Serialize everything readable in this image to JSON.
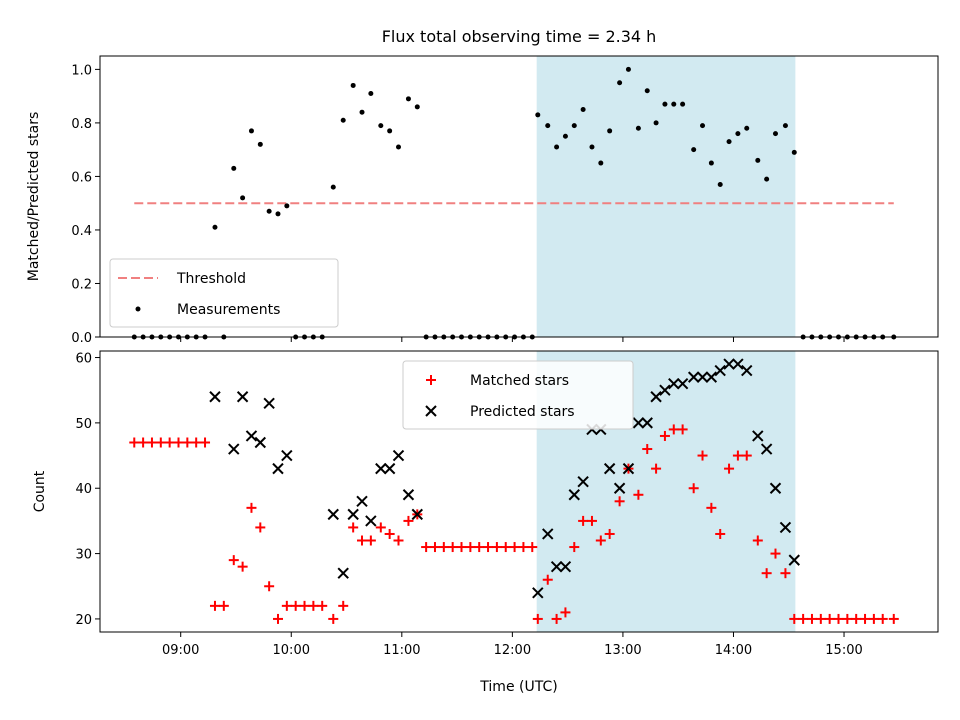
{
  "chart_data": {
    "title": "Flux total observing time = 2.34 h",
    "xlabel": "Time (UTC)",
    "x_tick_labels": [
      "09:00",
      "10:00",
      "11:00",
      "12:00",
      "13:00",
      "14:00",
      "15:00"
    ],
    "x_ticks": [
      9,
      10,
      11,
      12,
      13,
      14,
      15
    ],
    "xlim": [
      8.27,
      15.85
    ],
    "shaded_span": [
      12.22,
      14.56
    ],
    "shade_color": "#add8e6",
    "panels": [
      {
        "type": "scatter",
        "ylabel": "Matched/Predicted stars",
        "ylim": [
          0,
          1.05
        ],
        "y_ticks": [
          0.0,
          0.2,
          0.4,
          0.6,
          0.8,
          1.0
        ],
        "y_tick_labels": [
          "0.0",
          "0.2",
          "0.4",
          "0.6",
          "0.8",
          "1.0"
        ],
        "legend_position": "lower-left",
        "threshold": {
          "name": "Threshold",
          "value": 0.5,
          "x_range": [
            8.58,
            15.45
          ],
          "color": "#f08080"
        },
        "series": [
          {
            "name": "Measurements",
            "marker": "dot",
            "color": "#000000",
            "points": [
              [
                8.58,
                0
              ],
              [
                8.66,
                0
              ],
              [
                8.74,
                0
              ],
              [
                8.82,
                0
              ],
              [
                8.9,
                0
              ],
              [
                8.98,
                0
              ],
              [
                9.06,
                0
              ],
              [
                9.14,
                0
              ],
              [
                9.22,
                0
              ],
              [
                9.31,
                0.41
              ],
              [
                9.39,
                0
              ],
              [
                9.48,
                0.63
              ],
              [
                9.56,
                0.52
              ],
              [
                9.64,
                0.77
              ],
              [
                9.72,
                0.72
              ],
              [
                9.8,
                0.47
              ],
              [
                9.88,
                0.46
              ],
              [
                9.96,
                0.49
              ],
              [
                10.04,
                0
              ],
              [
                10.12,
                0
              ],
              [
                10.2,
                0
              ],
              [
                10.28,
                0
              ],
              [
                10.38,
                0.56
              ],
              [
                10.47,
                0.81
              ],
              [
                10.56,
                0.94
              ],
              [
                10.64,
                0.84
              ],
              [
                10.72,
                0.91
              ],
              [
                10.81,
                0.79
              ],
              [
                10.89,
                0.77
              ],
              [
                10.97,
                0.71
              ],
              [
                11.06,
                0.89
              ],
              [
                11.14,
                0.86
              ],
              [
                11.22,
                0
              ],
              [
                11.3,
                0
              ],
              [
                11.38,
                0
              ],
              [
                11.46,
                0
              ],
              [
                11.54,
                0
              ],
              [
                11.62,
                0
              ],
              [
                11.7,
                0
              ],
              [
                11.78,
                0
              ],
              [
                11.86,
                0
              ],
              [
                11.94,
                0
              ],
              [
                12.02,
                0
              ],
              [
                12.1,
                0
              ],
              [
                12.18,
                0
              ],
              [
                12.23,
                0.83
              ],
              [
                12.32,
                0.79
              ],
              [
                12.4,
                0.71
              ],
              [
                12.48,
                0.75
              ],
              [
                12.56,
                0.79
              ],
              [
                12.64,
                0.85
              ],
              [
                12.72,
                0.71
              ],
              [
                12.8,
                0.65
              ],
              [
                12.88,
                0.77
              ],
              [
                12.97,
                0.95
              ],
              [
                13.05,
                1.0
              ],
              [
                13.14,
                0.78
              ],
              [
                13.22,
                0.92
              ],
              [
                13.3,
                0.8
              ],
              [
                13.38,
                0.87
              ],
              [
                13.46,
                0.87
              ],
              [
                13.54,
                0.87
              ],
              [
                13.64,
                0.7
              ],
              [
                13.72,
                0.79
              ],
              [
                13.8,
                0.65
              ],
              [
                13.88,
                0.57
              ],
              [
                13.96,
                0.73
              ],
              [
                14.04,
                0.76
              ],
              [
                14.12,
                0.78
              ],
              [
                14.22,
                0.66
              ],
              [
                14.3,
                0.59
              ],
              [
                14.38,
                0.76
              ],
              [
                14.47,
                0.79
              ],
              [
                14.55,
                0.69
              ],
              [
                14.63,
                0
              ],
              [
                14.71,
                0
              ],
              [
                14.79,
                0
              ],
              [
                14.87,
                0
              ],
              [
                14.95,
                0
              ],
              [
                15.03,
                0
              ],
              [
                15.11,
                0
              ],
              [
                15.19,
                0
              ],
              [
                15.27,
                0
              ],
              [
                15.35,
                0
              ],
              [
                15.45,
                0
              ]
            ]
          }
        ]
      },
      {
        "type": "scatter",
        "ylabel": "Count",
        "ylim": [
          18,
          61
        ],
        "y_ticks": [
          20,
          30,
          40,
          50,
          60
        ],
        "y_tick_labels": [
          "20",
          "30",
          "40",
          "50",
          "60"
        ],
        "legend_position": "upper-center",
        "series": [
          {
            "name": "Matched stars",
            "marker": "plus",
            "color": "#ff0000",
            "points": [
              [
                8.58,
                47
              ],
              [
                8.66,
                47
              ],
              [
                8.74,
                47
              ],
              [
                8.82,
                47
              ],
              [
                8.9,
                47
              ],
              [
                8.98,
                47
              ],
              [
                9.06,
                47
              ],
              [
                9.14,
                47
              ],
              [
                9.22,
                47
              ],
              [
                9.31,
                22
              ],
              [
                9.39,
                22
              ],
              [
                9.48,
                29
              ],
              [
                9.56,
                28
              ],
              [
                9.64,
                37
              ],
              [
                9.72,
                34
              ],
              [
                9.8,
                25
              ],
              [
                9.88,
                20
              ],
              [
                9.96,
                22
              ],
              [
                10.04,
                22
              ],
              [
                10.12,
                22
              ],
              [
                10.2,
                22
              ],
              [
                10.28,
                22
              ],
              [
                10.38,
                20
              ],
              [
                10.47,
                22
              ],
              [
                10.56,
                34
              ],
              [
                10.64,
                32
              ],
              [
                10.72,
                32
              ],
              [
                10.81,
                34
              ],
              [
                10.89,
                33
              ],
              [
                10.97,
                32
              ],
              [
                11.06,
                35
              ],
              [
                11.14,
                36
              ],
              [
                11.22,
                31
              ],
              [
                11.3,
                31
              ],
              [
                11.38,
                31
              ],
              [
                11.46,
                31
              ],
              [
                11.54,
                31
              ],
              [
                11.62,
                31
              ],
              [
                11.7,
                31
              ],
              [
                11.78,
                31
              ],
              [
                11.86,
                31
              ],
              [
                11.94,
                31
              ],
              [
                12.02,
                31
              ],
              [
                12.1,
                31
              ],
              [
                12.18,
                31
              ],
              [
                12.23,
                20
              ],
              [
                12.32,
                26
              ],
              [
                12.4,
                20
              ],
              [
                12.48,
                21
              ],
              [
                12.56,
                31
              ],
              [
                12.64,
                35
              ],
              [
                12.72,
                35
              ],
              [
                12.8,
                32
              ],
              [
                12.88,
                33
              ],
              [
                12.97,
                38
              ],
              [
                13.05,
                43
              ],
              [
                13.14,
                39
              ],
              [
                13.22,
                46
              ],
              [
                13.3,
                43
              ],
              [
                13.38,
                48
              ],
              [
                13.46,
                49
              ],
              [
                13.54,
                49
              ],
              [
                13.64,
                40
              ],
              [
                13.72,
                45
              ],
              [
                13.8,
                37
              ],
              [
                13.88,
                33
              ],
              [
                13.96,
                43
              ],
              [
                14.04,
                45
              ],
              [
                14.12,
                45
              ],
              [
                14.22,
                32
              ],
              [
                14.3,
                27
              ],
              [
                14.38,
                30
              ],
              [
                14.47,
                27
              ],
              [
                14.55,
                20
              ],
              [
                14.63,
                20
              ],
              [
                14.71,
                20
              ],
              [
                14.79,
                20
              ],
              [
                14.87,
                20
              ],
              [
                14.95,
                20
              ],
              [
                15.03,
                20
              ],
              [
                15.11,
                20
              ],
              [
                15.19,
                20
              ],
              [
                15.27,
                20
              ],
              [
                15.35,
                20
              ],
              [
                15.45,
                20
              ]
            ]
          },
          {
            "name": "Predicted stars",
            "marker": "x",
            "color": "#000000",
            "points": [
              [
                9.31,
                54
              ],
              [
                9.48,
                46
              ],
              [
                9.56,
                54
              ],
              [
                9.64,
                48
              ],
              [
                9.72,
                47
              ],
              [
                9.8,
                53
              ],
              [
                9.88,
                43
              ],
              [
                9.96,
                45
              ],
              [
                10.38,
                36
              ],
              [
                10.47,
                27
              ],
              [
                10.56,
                36
              ],
              [
                10.64,
                38
              ],
              [
                10.72,
                35
              ],
              [
                10.81,
                43
              ],
              [
                10.89,
                43
              ],
              [
                10.97,
                45
              ],
              [
                11.06,
                39
              ],
              [
                11.14,
                36
              ],
              [
                12.23,
                24
              ],
              [
                12.32,
                33
              ],
              [
                12.4,
                28
              ],
              [
                12.48,
                28
              ],
              [
                12.56,
                39
              ],
              [
                12.64,
                41
              ],
              [
                12.72,
                49
              ],
              [
                12.8,
                49
              ],
              [
                12.88,
                43
              ],
              [
                12.97,
                40
              ],
              [
                13.05,
                43
              ],
              [
                13.14,
                50
              ],
              [
                13.22,
                50
              ],
              [
                13.3,
                54
              ],
              [
                13.38,
                55
              ],
              [
                13.46,
                56
              ],
              [
                13.54,
                56
              ],
              [
                13.64,
                57
              ],
              [
                13.72,
                57
              ],
              [
                13.8,
                57
              ],
              [
                13.88,
                58
              ],
              [
                13.96,
                59
              ],
              [
                14.04,
                59
              ],
              [
                14.12,
                58
              ],
              [
                14.22,
                48
              ],
              [
                14.3,
                46
              ],
              [
                14.38,
                40
              ],
              [
                14.47,
                34
              ],
              [
                14.55,
                29
              ]
            ]
          }
        ]
      }
    ]
  }
}
